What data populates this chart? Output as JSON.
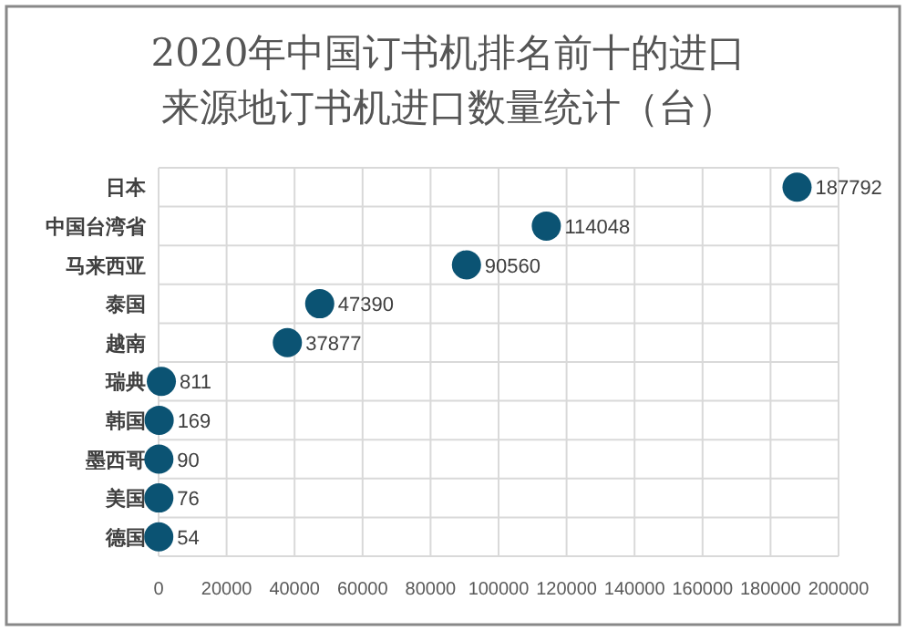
{
  "chart_data": {
    "type": "scatter",
    "title": "2020年中国订书机排名前十的进口来源地订书机进口数量统计（台）",
    "orientation": "horizontal",
    "categories": [
      "日本",
      "中国台湾省",
      "马来西亚",
      "泰国",
      "越南",
      "瑞典",
      "韩国",
      "墨西哥",
      "美国",
      "德国"
    ],
    "values": [
      187792,
      114048,
      90560,
      47390,
      37877,
      811,
      169,
      90,
      76,
      54
    ],
    "color": "#0b5373",
    "marker": "circle",
    "data_labels": true,
    "grid": true,
    "xlim": [
      0,
      200000
    ],
    "xticks": [
      0,
      20000,
      40000,
      60000,
      80000,
      100000,
      120000,
      140000,
      160000,
      180000,
      200000
    ]
  }
}
